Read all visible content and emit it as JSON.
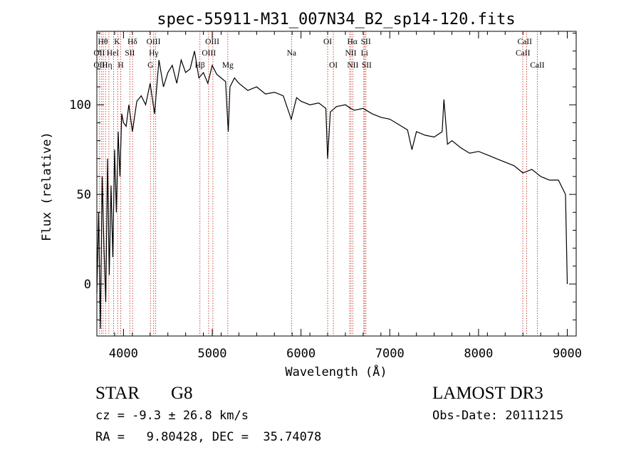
{
  "chart_data": {
    "type": "line",
    "title": "spec-55911-M31_007N34_B2_sp14-120.fits",
    "xlabel": "Wavelength (Å)",
    "ylabel": "Flux (relative)",
    "xlim": [
      3700,
      9100
    ],
    "ylim": [
      -29,
      141
    ],
    "x_ticks": [
      4000,
      5000,
      6000,
      7000,
      8000,
      9000
    ],
    "x_tick_labels": [
      "4000",
      "5000",
      "6000",
      "7000",
      "8000",
      "9000"
    ],
    "y_ticks": [
      0,
      50,
      100
    ],
    "y_tick_labels": [
      "0",
      "50",
      "100"
    ],
    "series": [
      {
        "name": "flux",
        "x": [
          3700,
          3720,
          3740,
          3760,
          3780,
          3800,
          3820,
          3840,
          3860,
          3880,
          3900,
          3920,
          3940,
          3960,
          3980,
          4000,
          4030,
          4060,
          4100,
          4150,
          4200,
          4250,
          4300,
          4350,
          4400,
          4450,
          4500,
          4550,
          4600,
          4650,
          4700,
          4750,
          4800,
          4850,
          4900,
          4950,
          5000,
          5050,
          5100,
          5150,
          5180,
          5200,
          5250,
          5300,
          5400,
          5500,
          5600,
          5700,
          5800,
          5890,
          5950,
          6000,
          6100,
          6200,
          6280,
          6300,
          6330,
          6400,
          6500,
          6560,
          6600,
          6700,
          6800,
          6900,
          7000,
          7100,
          7200,
          7250,
          7300,
          7400,
          7500,
          7590,
          7610,
          7650,
          7700,
          7800,
          7900,
          8000,
          8100,
          8200,
          8300,
          8400,
          8500,
          8600,
          8700,
          8800,
          8900,
          8980,
          9000
        ],
        "y": [
          -5,
          40,
          -25,
          60,
          20,
          -10,
          70,
          5,
          55,
          15,
          75,
          40,
          85,
          60,
          95,
          90,
          88,
          100,
          85,
          102,
          105,
          100,
          112,
          95,
          125,
          110,
          118,
          122,
          112,
          125,
          118,
          120,
          130,
          115,
          118,
          112,
          122,
          117,
          115,
          113,
          85,
          110,
          115,
          112,
          108,
          110,
          106,
          107,
          105,
          92,
          104,
          102,
          100,
          101,
          98,
          70,
          96,
          99,
          100,
          98,
          97,
          98,
          95,
          93,
          92,
          89,
          86,
          75,
          85,
          83,
          82,
          85,
          103,
          78,
          80,
          76,
          73,
          74,
          72,
          70,
          68,
          66,
          62,
          64,
          60,
          58,
          58,
          50,
          0
        ]
      }
    ],
    "reference_lines": [
      {
        "x": 3727,
        "label": "OII"
      },
      {
        "x": 3750,
        "label": "OII"
      },
      {
        "x": 3771,
        "label": "Hθ"
      },
      {
        "x": 3798,
        "label": "Hη"
      },
      {
        "x": 3835,
        "label": "Hη"
      },
      {
        "x": 3889,
        "label": "HeI"
      },
      {
        "x": 3934,
        "label": "K"
      },
      {
        "x": 3969,
        "label": "H"
      },
      {
        "x": 4072,
        "label": "SII"
      },
      {
        "x": 4102,
        "label": "Hδ"
      },
      {
        "x": 4304,
        "label": "G"
      },
      {
        "x": 4340,
        "label": "Hγ"
      },
      {
        "x": 4363,
        "label": "OIII"
      },
      {
        "x": 4861,
        "label": "Hβ"
      },
      {
        "x": 4959,
        "label": "OIII"
      },
      {
        "x": 5007,
        "label": "OIII"
      },
      {
        "x": 5175,
        "label": "Mg"
      },
      {
        "x": 5893,
        "label": "Na"
      },
      {
        "x": 6300,
        "label": "OI"
      },
      {
        "x": 6364,
        "label": "OI"
      },
      {
        "x": 6548,
        "label": "NII"
      },
      {
        "x": 6563,
        "label": "Hα"
      },
      {
        "x": 6583,
        "label": "NII"
      },
      {
        "x": 6707,
        "label": "Li"
      },
      {
        "x": 6716,
        "label": "SII"
      },
      {
        "x": 6731,
        "label": "SII"
      },
      {
        "x": 8498,
        "label": "CaII"
      },
      {
        "x": 8542,
        "label": "CaII"
      },
      {
        "x": 8662,
        "label": "CaII"
      }
    ],
    "line_labels": [
      {
        "text": "Hθ",
        "x": 3768,
        "row": 1
      },
      {
        "text": "K",
        "x": 3928,
        "row": 1
      },
      {
        "text": "Hδ",
        "x": 4100,
        "row": 1
      },
      {
        "text": "OIII",
        "x": 4338,
        "row": 1
      },
      {
        "text": "OIII",
        "x": 5000,
        "row": 1
      },
      {
        "text": "OI",
        "x": 6300,
        "row": 1
      },
      {
        "text": "Hα",
        "x": 6578,
        "row": 1
      },
      {
        "text": "SII",
        "x": 6730,
        "row": 1
      },
      {
        "text": "CaII",
        "x": 8520,
        "row": 1
      },
      {
        "text": "OII",
        "x": 3727,
        "row": 2
      },
      {
        "text": "HeI",
        "x": 3880,
        "row": 2
      },
      {
        "text": "SII",
        "x": 4072,
        "row": 2
      },
      {
        "text": "Hγ",
        "x": 4340,
        "row": 2
      },
      {
        "text": "OIII",
        "x": 4962,
        "row": 2
      },
      {
        "text": "Na",
        "x": 5893,
        "row": 2
      },
      {
        "text": "NII",
        "x": 6560,
        "row": 2
      },
      {
        "text": "Li",
        "x": 6715,
        "row": 2
      },
      {
        "text": "CaII",
        "x": 8500,
        "row": 2
      },
      {
        "text": "OII",
        "x": 3727,
        "row": 3
      },
      {
        "text": "Hη",
        "x": 3815,
        "row": 3
      },
      {
        "text": "H",
        "x": 3969,
        "row": 3
      },
      {
        "text": "G",
        "x": 4304,
        "row": 3
      },
      {
        "text": "Hβ",
        "x": 4860,
        "row": 3
      },
      {
        "text": "Mg",
        "x": 5175,
        "row": 3
      },
      {
        "text": "OI",
        "x": 6364,
        "row": 3
      },
      {
        "text": "NII",
        "x": 6583,
        "row": 3
      },
      {
        "text": "SII",
        "x": 6740,
        "row": 3
      },
      {
        "text": "CaII",
        "x": 8662,
        "row": 3
      }
    ]
  },
  "footer": {
    "class_label": "STAR",
    "subclass": "G8",
    "survey": "LAMOST DR3",
    "redshift": "cz = -9.3 ± 26.8 km/s",
    "obs_date": "Obs-Date: 20111215",
    "coords": "RA =   9.80428, DEC =  35.74078"
  }
}
